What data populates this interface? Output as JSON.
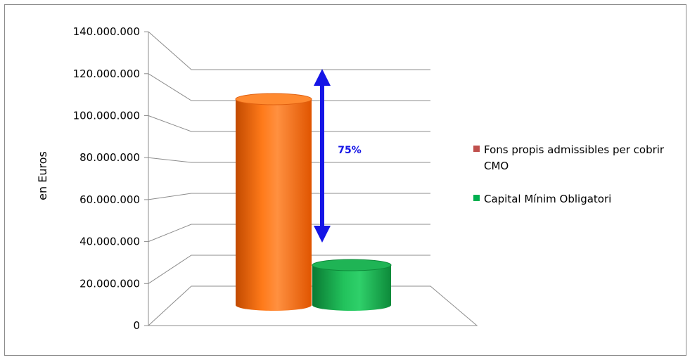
{
  "chart_data": {
    "type": "bar",
    "style": "3d-cylinder",
    "ylabel": "en Euros",
    "ylim": [
      0,
      140000000
    ],
    "yticks": [
      "0",
      "20.000.000",
      "40.000.000",
      "60.000.000",
      "80.000.000",
      "100.000.000",
      "120.000.000",
      "140.000.000"
    ],
    "grid": true,
    "legend_position": "right",
    "series": [
      {
        "name": "Fons propis admissibles per cobrir CMO",
        "legend_lines": [
          "Fons propis admissibles per cobrir",
          "CMO"
        ],
        "value": 120000000,
        "color": "#ff6a00",
        "legend_color": "#c0504d"
      },
      {
        "name": "Capital Mínim Obligatori",
        "legend_lines": [
          "Capital Mínim Obligatori"
        ],
        "value": 30000000,
        "color": "#14a84a",
        "legend_color": "#00b050"
      }
    ],
    "annotation": {
      "text": "75%",
      "color": "#1515e6"
    }
  }
}
